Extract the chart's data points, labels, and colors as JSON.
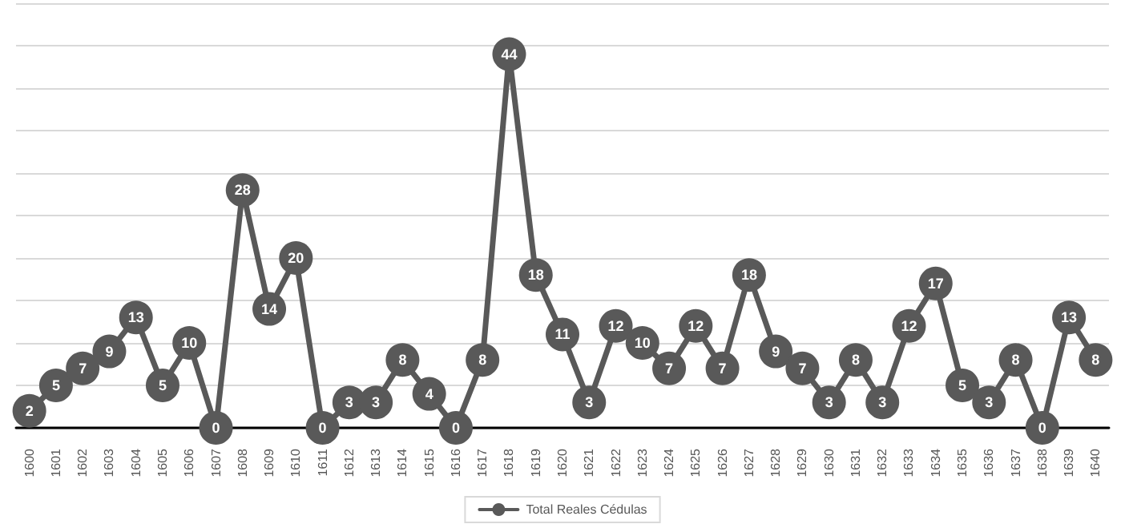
{
  "chart_data": {
    "type": "line",
    "categories": [
      "1600",
      "1601",
      "1602",
      "1603",
      "1604",
      "1605",
      "1606",
      "1607",
      "1608",
      "1609",
      "1610",
      "1611",
      "1612",
      "1613",
      "1614",
      "1615",
      "1616",
      "1617",
      "1618",
      "1619",
      "1620",
      "1621",
      "1622",
      "1623",
      "1624",
      "1625",
      "1626",
      "1627",
      "1628",
      "1629",
      "1630",
      "1631",
      "1632",
      "1633",
      "1634",
      "1635",
      "1636",
      "1637",
      "1638",
      "1639",
      "1640"
    ],
    "series": [
      {
        "name": "Total Reales Cédulas",
        "color": "#595959",
        "values": [
          2,
          5,
          7,
          9,
          13,
          5,
          10,
          0,
          28,
          14,
          20,
          0,
          3,
          3,
          8,
          4,
          0,
          8,
          44,
          18,
          11,
          3,
          12,
          10,
          7,
          12,
          7,
          18,
          9,
          7,
          3,
          8,
          3,
          12,
          17,
          5,
          3,
          8,
          0,
          13,
          8
        ]
      }
    ],
    "ylim": [
      0,
      50
    ],
    "yticks": [
      {
        "value": 0,
        "label": null
      },
      {
        "value": 5,
        "label": null
      },
      {
        "value": 10,
        "label": null
      },
      {
        "value": 15,
        "label": null
      },
      {
        "value": 20,
        "label": null
      },
      {
        "value": 25,
        "label": null
      },
      {
        "value": 30,
        "label": null
      },
      {
        "value": 35,
        "label": null
      },
      {
        "value": 40,
        "label": null
      },
      {
        "value": 45,
        "label": null
      },
      {
        "value": 50,
        "label": null
      }
    ],
    "tick_labels": "x",
    "grid": "y",
    "legend": "bottom",
    "marker": "circle",
    "line_style": "solid",
    "data_labels": true
  }
}
